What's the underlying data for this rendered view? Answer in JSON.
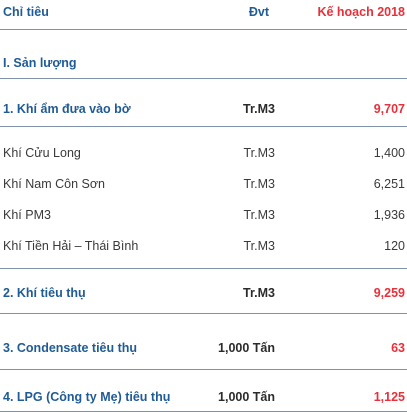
{
  "header": {
    "col_item": "Chỉ tiêu",
    "col_unit": "Đvt",
    "col_plan": "Kế hoạch 2018"
  },
  "section": {
    "title": "I. Sản lượng"
  },
  "rows": [
    {
      "item": "1. Khí ẩm đưa vào bờ",
      "unit": "Tr.M3",
      "value": "9,707"
    },
    {
      "item": "Khí Cửu Long",
      "unit": "Tr.M3",
      "value": "1,400"
    },
    {
      "item": "Khí Nam Côn Sơn",
      "unit": "Tr.M3",
      "value": "6,251"
    },
    {
      "item": "Khí PM3",
      "unit": "Tr.M3",
      "value": "1,936"
    },
    {
      "item": "Khí Tiền Hải – Thái Bình",
      "unit": "Tr.M3",
      "value": "120"
    },
    {
      "item": "2. Khí tiêu thụ",
      "unit": "Tr.M3",
      "value": "9,259"
    },
    {
      "item": "3. Condensate tiêu thụ",
      "unit": "1,000 Tấn",
      "value": "63"
    },
    {
      "item": "4. LPG (Công ty Mẹ) tiêu thụ",
      "unit": "1,000 Tấn",
      "value": "1,125"
    }
  ]
}
